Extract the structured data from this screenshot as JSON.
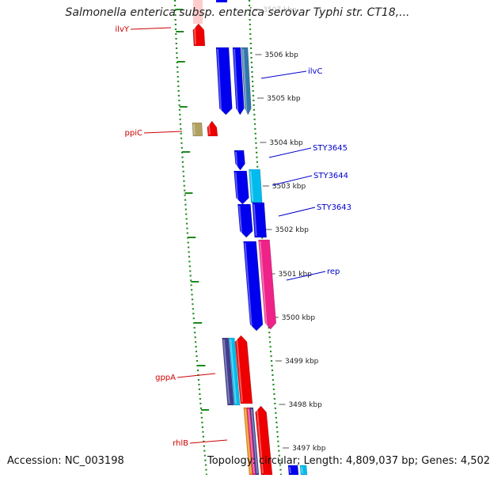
{
  "title": "Salmonella enterica subsp. enterica serovar Typhi str. CT18,...",
  "footer": {
    "accession": "Accession: NC_003198",
    "summary": "Topology: circular; Length: 4,809,037 bp; Genes: 4,502"
  },
  "colors": {
    "backbone": "#909090",
    "tick_green": "#1f8a1f",
    "reverse_label": "#cc0000",
    "forward_label": "#0000cc",
    "blue": "#0000ee",
    "light_blue": "#00bbee",
    "pink": "#ee2288",
    "red": "#ee0000",
    "khaki": "#b0a060",
    "navy": "#403c90",
    "orange": "#ee8800"
  },
  "ruler": {
    "unit": "kbp",
    "ticks": [
      "3507 kbp",
      "3506 kbp",
      "3505 kbp",
      "3504 kbp",
      "3503 kbp",
      "3502 kbp",
      "3501 kbp",
      "3500 kbp",
      "3499 kbp",
      "3498 kbp",
      "3497 kbp"
    ]
  },
  "gene_labels": {
    "forward": [
      "ilvC",
      "STY3645",
      "STY3644",
      "STY3643",
      "rep"
    ],
    "reverse": [
      "ilvY",
      "ppiC",
      "gppA",
      "rhlB"
    ]
  }
}
